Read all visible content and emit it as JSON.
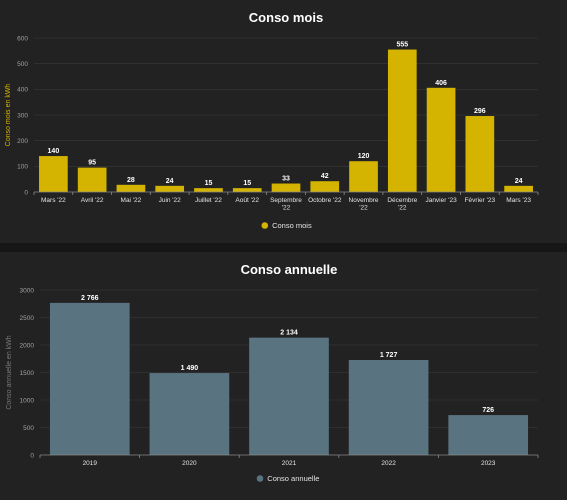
{
  "chart_data": [
    {
      "type": "bar",
      "title": "Conso mois",
      "ylabel": "Conso mois en kWh",
      "xlabel": "",
      "ylim": [
        0,
        600
      ],
      "yticks": [
        0,
        100,
        200,
        300,
        400,
        500,
        600
      ],
      "categories": [
        "Mars '22",
        "Avril '22",
        "Mai '22",
        "Juin '22",
        "Juillet '22",
        "Août '22",
        "Septembre '22",
        "Octobre '22",
        "Novembre '22",
        "Décembre '22",
        "Janvier '23",
        "Février '23",
        "Mars '23"
      ],
      "category_lines": [
        [
          "Mars '22"
        ],
        [
          "Avril '22"
        ],
        [
          "Mai '22"
        ],
        [
          "Juin '22"
        ],
        [
          "Juillet '22"
        ],
        [
          "Août '22"
        ],
        [
          "Septembre",
          "'22"
        ],
        [
          "Octobre '22"
        ],
        [
          "Novembre",
          "'22"
        ],
        [
          "Décembre",
          "'22"
        ],
        [
          "Janvier '23"
        ],
        [
          "Février '23"
        ],
        [
          "Mars '23"
        ]
      ],
      "series": [
        {
          "name": "Conso mois",
          "color": "#d4b400",
          "values": [
            140,
            95,
            28,
            24,
            15,
            15,
            33,
            42,
            120,
            555,
            406,
            296,
            24
          ],
          "labels": [
            "140",
            "95",
            "28",
            "24",
            "15",
            "15",
            "33",
            "42",
            "120",
            "555",
            "406",
            "296",
            "24"
          ]
        }
      ],
      "grid": true,
      "legend": "bottom-center"
    },
    {
      "type": "bar",
      "title": "Conso annuelle",
      "ylabel": "Conso annuelle en kWh",
      "xlabel": "",
      "ylim": [
        0,
        3000
      ],
      "yticks": [
        0,
        500,
        1000,
        1500,
        2000,
        2500,
        3000
      ],
      "categories": [
        "2019",
        "2020",
        "2021",
        "2022",
        "2023"
      ],
      "category_lines": [
        [
          "2019"
        ],
        [
          "2020"
        ],
        [
          "2021"
        ],
        [
          "2022"
        ],
        [
          "2023"
        ]
      ],
      "series": [
        {
          "name": "Conso annuelle",
          "color": "#5a7380",
          "values": [
            2766,
            1490,
            2134,
            1727,
            726
          ],
          "labels": [
            "2 766",
            "1 490",
            "2 134",
            "1 727",
            "726"
          ]
        }
      ],
      "grid": true,
      "legend": "bottom-center"
    }
  ]
}
